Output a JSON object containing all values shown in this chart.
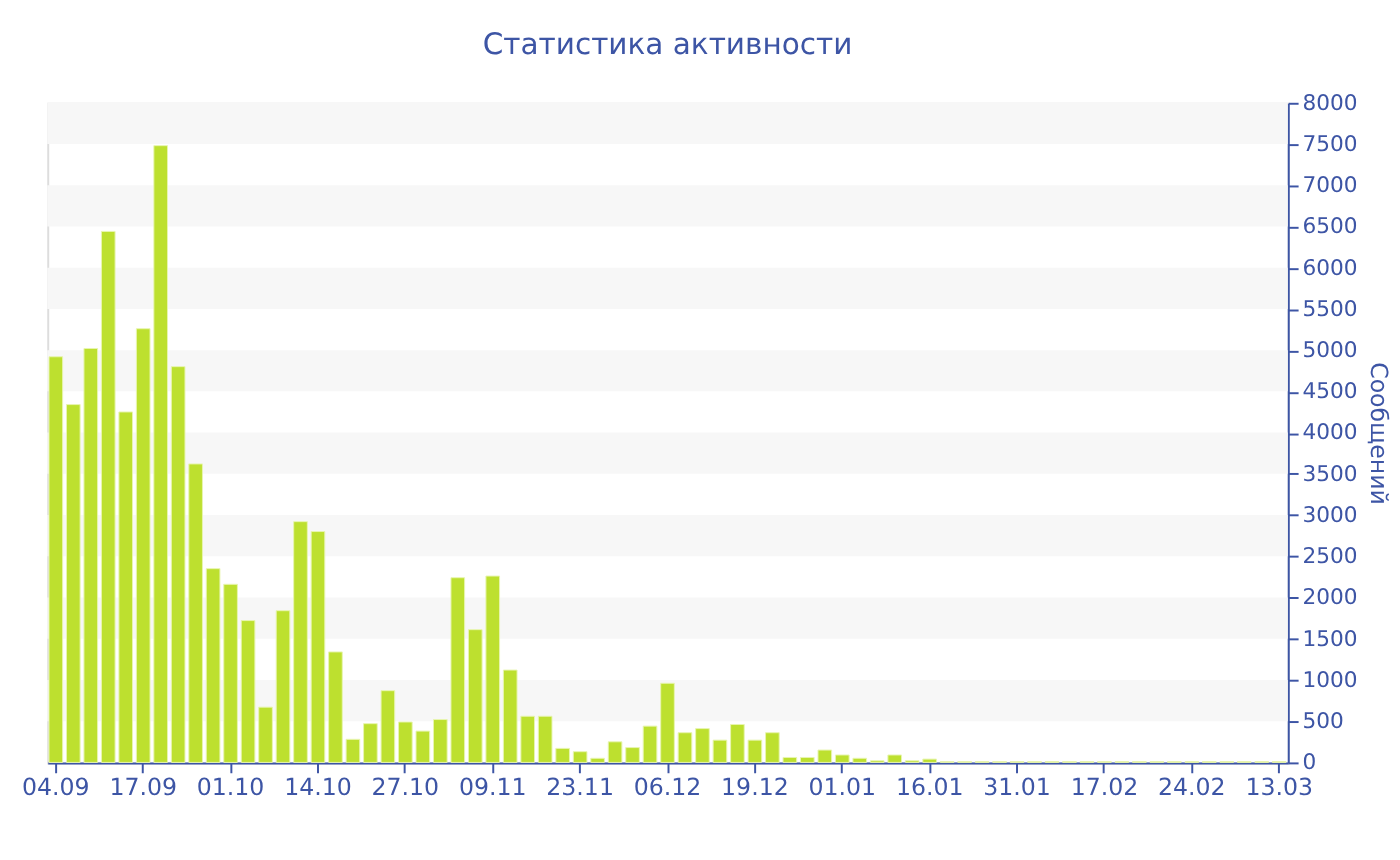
{
  "chart_data": {
    "type": "bar",
    "title": "Статистика активности",
    "ylabel": "Сообщений",
    "categories": [
      "04.09",
      null,
      null,
      null,
      null,
      "17.09",
      null,
      null,
      null,
      null,
      "01.10",
      null,
      null,
      null,
      null,
      "14.10",
      null,
      null,
      null,
      null,
      "27.10",
      null,
      null,
      null,
      null,
      "09.11",
      null,
      null,
      null,
      null,
      "23.11",
      null,
      null,
      null,
      null,
      "06.12",
      null,
      null,
      null,
      null,
      "19.12",
      null,
      null,
      null,
      null,
      "01.01",
      null,
      null,
      null,
      null,
      "16.01",
      null,
      null,
      null,
      null,
      "31.01",
      null,
      null,
      null,
      null,
      "17.02",
      null,
      null,
      null,
      null,
      "24.02",
      null,
      null,
      null,
      null,
      "13.03"
    ],
    "values": [
      4920,
      4340,
      5020,
      6440,
      4250,
      5260,
      7480,
      4800,
      3620,
      2350,
      2160,
      1720,
      670,
      1840,
      2920,
      2800,
      1340,
      280,
      470,
      870,
      490,
      380,
      520,
      2240,
      1610,
      2260,
      1120,
      560,
      560,
      170,
      130,
      50,
      250,
      180,
      440,
      960,
      360,
      410,
      270,
      460,
      270,
      360,
      60,
      60,
      150,
      90,
      50,
      20,
      90,
      20,
      40,
      10,
      10,
      10,
      10,
      10,
      10,
      10,
      10,
      10,
      10,
      10,
      10,
      10,
      10,
      10,
      10,
      10,
      10,
      10,
      10
    ],
    "color": "#bde02f",
    "ylim": [
      0,
      8000
    ],
    "yticks": [
      0,
      500,
      1000,
      1500,
      2000,
      2500,
      3000,
      3500,
      4000,
      4500,
      5000,
      5500,
      6000,
      6500,
      7000,
      7500,
      8000
    ],
    "bands": [
      {
        "axis": "y",
        "from": 500,
        "to": 1000,
        "color": "#f7f7f7"
      },
      {
        "axis": "y",
        "from": 1500,
        "to": 2000,
        "color": "#f7f7f7"
      },
      {
        "axis": "y",
        "from": 2500,
        "to": 3000,
        "color": "#f7f7f7"
      },
      {
        "axis": "y",
        "from": 3500,
        "to": 4000,
        "color": "#f7f7f7"
      },
      {
        "axis": "y",
        "from": 4500,
        "to": 5000,
        "color": "#f7f7f7"
      },
      {
        "axis": "y",
        "from": 5500,
        "to": 6000,
        "color": "#f7f7f7"
      },
      {
        "axis": "y",
        "from": 6500,
        "to": 7000,
        "color": "#f7f7f7"
      },
      {
        "axis": "y",
        "from": 7500,
        "to": 8000,
        "color": "#f7f7f7"
      }
    ]
  }
}
